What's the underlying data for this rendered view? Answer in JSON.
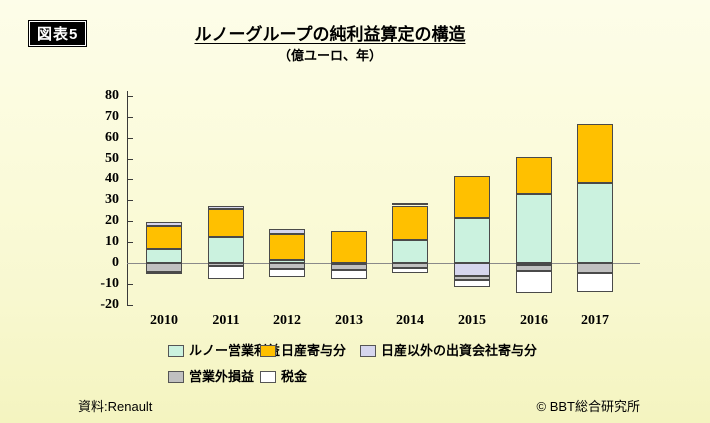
{
  "badge": "図表5",
  "title": "ルノーグループの純利益算定の構造",
  "subtitle": "（億ユーロ、年）",
  "source": "資料:Renault",
  "credit": "© BBT総合研究所",
  "chart_data": {
    "type": "bar",
    "stacked": true,
    "title": "ルノーグループの純利益算定の構造",
    "unit_label": "（億ユーロ、年）",
    "categories": [
      "2010",
      "2011",
      "2012",
      "2013",
      "2014",
      "2015",
      "2016",
      "2017"
    ],
    "series": [
      {
        "name": "ルノー営業利益",
        "color": "#CBF2DF",
        "values": [
          6.5,
          12.5,
          1.5,
          0,
          11,
          21.5,
          33,
          38.5
        ]
      },
      {
        "name": "日産寄与分",
        "color": "#FFC000",
        "values": [
          11,
          13.5,
          12.5,
          15.5,
          16.5,
          20,
          17.5,
          28
        ]
      },
      {
        "name": "日産以外の出資会社寄与分",
        "color": "#D6D6EE",
        "values": [
          2,
          1.5,
          2.5,
          -0.5,
          1,
          -6,
          -1,
          0
        ]
      },
      {
        "name": "営業外損益",
        "color": "#C0C0C0",
        "values": [
          -4.5,
          -1.5,
          -3,
          -3,
          -2.5,
          -2,
          -3,
          -5
        ]
      },
      {
        "name": "税金",
        "color": "#FFFFFF",
        "values": [
          -0.5,
          -6,
          -4,
          -4.5,
          -2.5,
          -3.5,
          -10.5,
          -9
        ]
      }
    ],
    "ylim": [
      -20,
      80
    ],
    "ytick_step": 10,
    "grid": false,
    "legend_position": "bottom"
  }
}
